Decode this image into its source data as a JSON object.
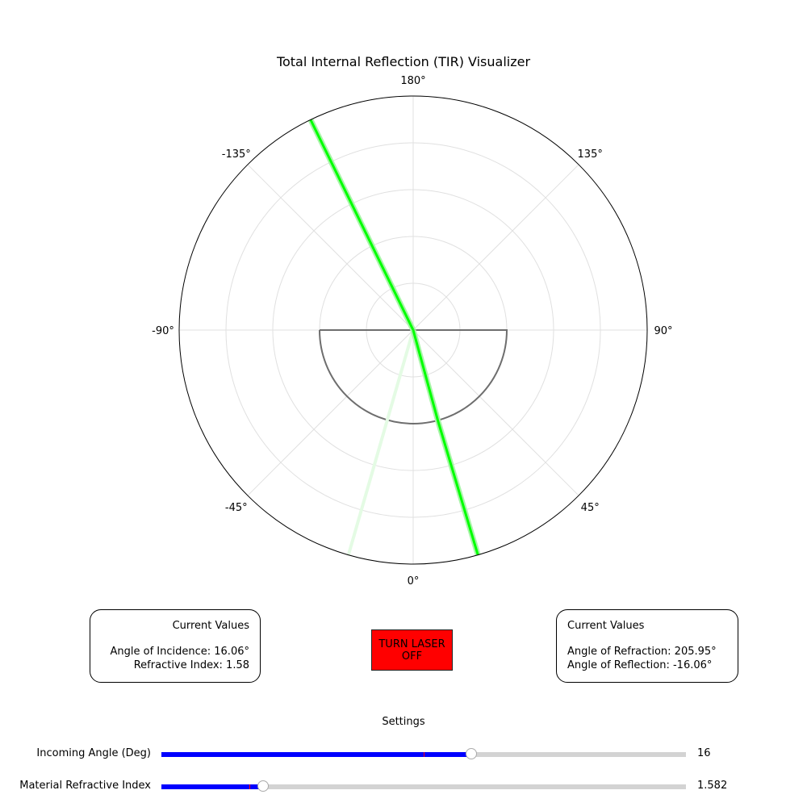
{
  "title": "Total Internal Reflection (TIR) Visualizer",
  "polar": {
    "tick_labels": [
      "0°",
      "45°",
      "90°",
      "135°",
      "180°",
      "-135°",
      "-90°",
      "-45°"
    ],
    "tick_angles_deg": [
      0,
      45,
      90,
      135,
      180,
      -135,
      -90,
      -45
    ],
    "radial_grid_rings": 5,
    "incident_ray_angle_deg": -154,
    "refracted_ray_angle_deg": 16.06,
    "reflected_ray_angle_deg": -16.06,
    "medium_shape": "semicircle",
    "colors": {
      "ray": "#00ff00",
      "ray_glow": "#a8f5a8",
      "reflected_ray": "#e4fbe4",
      "medium": "#6e6e6e",
      "grid": "#e0e0e0",
      "frame": "#000000"
    }
  },
  "left_box": {
    "header": "Current Values",
    "incidence": "Angle of Incidence: 16.06°",
    "index": "Refractive Index: 1.58"
  },
  "right_box": {
    "header": "Current Values",
    "refraction": "Angle of Refraction: 205.95°",
    "reflection": "Angle of Reflection: -16.06°"
  },
  "laser_button": {
    "label": "TURN LASER OFF",
    "color": "#ff0000"
  },
  "settings": {
    "title": "Settings",
    "sliders": [
      {
        "label": "Incoming Angle (Deg)",
        "value_text": "16",
        "fraction": 0.59,
        "initial_fraction": 0.5,
        "fill_color": "#0000ff"
      },
      {
        "label": "Material Refractive Index",
        "value_text": "1.582",
        "fraction": 0.194,
        "initial_fraction": 0.167,
        "fill_color": "#0000ff"
      }
    ]
  }
}
